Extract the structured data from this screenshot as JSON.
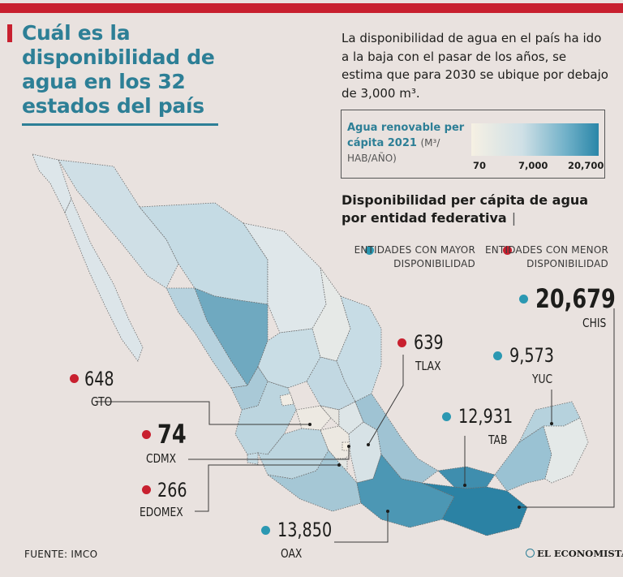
{
  "header": {
    "title": "Cuál es la disponibilidad de agua en los 32 estados del país",
    "intro": "La disponibilidad de agua en el país ha ido a la baja con el pasar de los años, se estima que para 2030 se ubique por debajo de 3,000 m³."
  },
  "legend": {
    "title_bold": "Agua renovable per cápita 2021",
    "title_unit": "(M³/ HAB/AÑO)",
    "ticks": [
      "70",
      "7,000",
      "20,700"
    ],
    "colors": {
      "low": "#f6f0e3",
      "mid": "#6fb0c8",
      "high": "#2a86a8"
    }
  },
  "chart": {
    "subtitle": "Disponibilidad per cápita de agua por entidad federativa",
    "separator": "|",
    "key_high": "ENTIDADES CON MAYOR DISPONIBILIDAD",
    "key_low": "ENTIDADES CON MENOR DISPONIBILIDAD",
    "colors": {
      "high_dot": "#2b98b2",
      "low_dot": "#c8202f"
    }
  },
  "callouts": {
    "gto": {
      "value": "648",
      "state": "GTO",
      "group": "low"
    },
    "cdmx": {
      "value": "74",
      "state": "CDMX",
      "group": "low"
    },
    "edomex": {
      "value": "266",
      "state": "EDOMEX",
      "group": "low"
    },
    "oax": {
      "value": "13,850",
      "state": "OAX",
      "group": "high"
    },
    "tlax": {
      "value": "639",
      "state": "TLAX",
      "group": "low"
    },
    "yuc": {
      "value": "9,573",
      "state": "YUC",
      "group": "high"
    },
    "tab": {
      "value": "12,931",
      "state": "TAB",
      "group": "high"
    },
    "chis": {
      "value": "20,679",
      "state": "CHIS",
      "group": "high"
    }
  },
  "footer": {
    "source": "FUENTE: IMCO",
    "brand": "EL ECONOMISTA"
  }
}
